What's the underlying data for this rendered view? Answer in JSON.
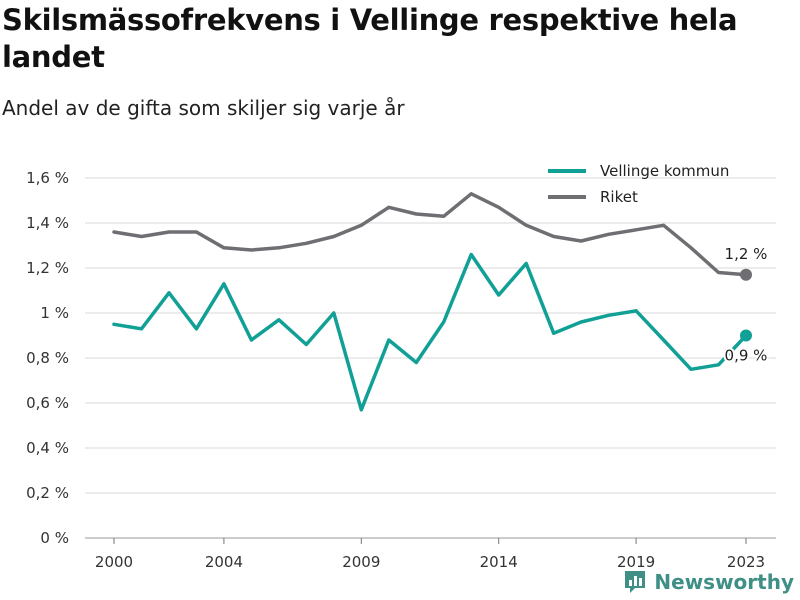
{
  "title": "Skilsmässofrekvens i Vellinge respektive hela landet",
  "subtitle": "Andel av de gifta som skiljer sig varje år",
  "brand": "Newsworthy",
  "colors": {
    "vellinge": "#11a096",
    "riket": "#6e6e73",
    "grid": "#d9d9d9"
  },
  "chart_data": {
    "type": "line",
    "x": [
      2000,
      2001,
      2002,
      2003,
      2004,
      2005,
      2006,
      2007,
      2008,
      2009,
      2010,
      2011,
      2012,
      2013,
      2014,
      2015,
      2016,
      2017,
      2018,
      2019,
      2020,
      2021,
      2022,
      2023
    ],
    "x_ticks": [
      2000,
      2004,
      2009,
      2014,
      2019,
      2023
    ],
    "x_tick_labels": [
      "2000",
      "2004",
      "2009",
      "2014",
      "2019",
      "2023"
    ],
    "ylim": [
      0,
      1.6
    ],
    "y_ticks": [
      0,
      0.2,
      0.4,
      0.6,
      0.8,
      1.0,
      1.2,
      1.4,
      1.6
    ],
    "y_tick_labels": [
      "0 %",
      "0,2 %",
      "0,4 %",
      "0,6 %",
      "0,8 %",
      "1 %",
      "1,2 %",
      "1,4 %",
      "1,6 %"
    ],
    "grid": true,
    "legend_position": "top-right",
    "series": [
      {
        "name": "Vellinge kommun",
        "color": "#11a096",
        "end_label": "0,9 %",
        "values": [
          0.95,
          0.93,
          1.09,
          0.93,
          1.13,
          0.88,
          0.97,
          0.86,
          1.0,
          0.57,
          0.88,
          0.78,
          0.96,
          1.26,
          1.08,
          1.22,
          0.91,
          0.96,
          0.99,
          1.01,
          0.88,
          0.75,
          0.77,
          0.9
        ]
      },
      {
        "name": "Riket",
        "color": "#6e6e73",
        "end_label": "1,2 %",
        "values": [
          1.36,
          1.34,
          1.36,
          1.36,
          1.29,
          1.28,
          1.29,
          1.31,
          1.34,
          1.39,
          1.47,
          1.44,
          1.43,
          1.53,
          1.47,
          1.39,
          1.34,
          1.32,
          1.35,
          1.37,
          1.39,
          1.29,
          1.18,
          1.17
        ]
      }
    ]
  }
}
